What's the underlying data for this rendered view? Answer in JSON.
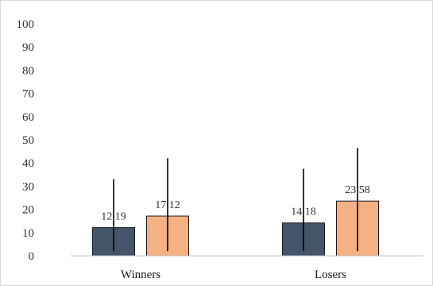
{
  "chart_data": {
    "type": "bar",
    "categories": [
      "Winners",
      "Losers"
    ],
    "series": [
      {
        "values": [
          12.19,
          14.18
        ],
        "labels": [
          "12,19",
          "14,18"
        ],
        "color": "#44546a",
        "error_upper": [
          33,
          37.5
        ],
        "error_lower": [
          2,
          2
        ]
      },
      {
        "values": [
          17.12,
          23.58
        ],
        "labels": [
          "17,12",
          "23,58"
        ],
        "color": "#f4b183",
        "error_upper": [
          42,
          46.5
        ],
        "error_lower": [
          2,
          2
        ]
      }
    ],
    "yticks": [
      "0",
      "10",
      "20",
      "30",
      "40",
      "50",
      "60",
      "70",
      "80",
      "90",
      "100"
    ],
    "ylim": [
      0,
      100
    ],
    "grid": false,
    "legend": "none",
    "colors": {
      "bar_border": "#1a1a1a",
      "error_bar": "#000000",
      "axis": "#bfbfbf"
    }
  }
}
